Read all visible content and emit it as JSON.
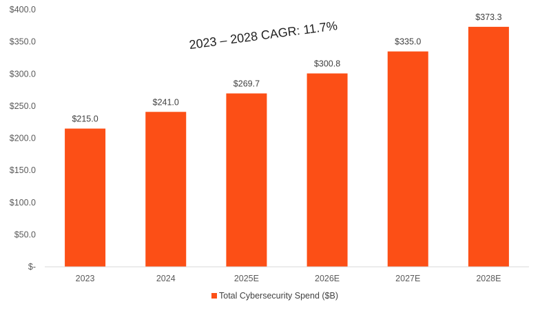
{
  "chart_data": {
    "type": "bar",
    "title": "",
    "xlabel": "",
    "ylabel": "",
    "categories": [
      "2023",
      "2024",
      "2025E",
      "2026E",
      "2027E",
      "2028E"
    ],
    "series": [
      {
        "name": "Total Cybersecurity Spend ($B)",
        "values": [
          215.0,
          241.0,
          269.7,
          300.8,
          335.0,
          373.3
        ],
        "data_labels": [
          "$215.0",
          "$241.0",
          "$269.7",
          "$300.8",
          "$335.0",
          "$373.3"
        ],
        "color": "#FC4F16"
      }
    ],
    "ylim": [
      0,
      400
    ],
    "y_ticks": [
      {
        "value": 0,
        "label": "$-"
      },
      {
        "value": 50,
        "label": "$50.0"
      },
      {
        "value": 100,
        "label": "$100.0"
      },
      {
        "value": 150,
        "label": "$150.0"
      },
      {
        "value": 200,
        "label": "$200.0"
      },
      {
        "value": 250,
        "label": "$250.0"
      },
      {
        "value": 300,
        "label": "$300.0"
      },
      {
        "value": 350,
        "label": "$350.0"
      },
      {
        "value": 400,
        "label": "$400.0"
      }
    ],
    "grid": false,
    "legend": {
      "position": "bottom",
      "label": "Total Cybersecurity Spend ($B)"
    },
    "annotation": {
      "text": "2023 – 2028 CAGR: 11.7%"
    }
  }
}
